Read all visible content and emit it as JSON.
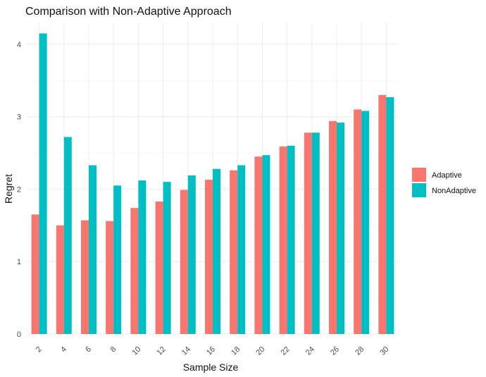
{
  "chart_data": {
    "type": "bar",
    "title": "Comparison with Non-Adaptive Approach",
    "xlabel": "Sample Size",
    "ylabel": "Regret",
    "categories": [
      "2",
      "4",
      "6",
      "8",
      "10",
      "12",
      "14",
      "16",
      "18",
      "20",
      "22",
      "24",
      "26",
      "28",
      "30"
    ],
    "series": [
      {
        "name": "Adaptive",
        "color": "#F8766D",
        "values": [
          1.65,
          1.5,
          1.57,
          1.56,
          1.74,
          1.83,
          1.99,
          2.13,
          2.26,
          2.45,
          2.59,
          2.78,
          2.94,
          3.1,
          3.3
        ]
      },
      {
        "name": "NonAdaptive",
        "color": "#00BFC4",
        "values": [
          4.15,
          2.72,
          2.33,
          2.05,
          2.12,
          2.1,
          2.19,
          2.28,
          2.33,
          2.47,
          2.6,
          2.78,
          2.92,
          3.08,
          3.27
        ]
      }
    ],
    "y_ticks": [
      0,
      1,
      2,
      3,
      4
    ],
    "ylim": [
      0,
      4.3
    ],
    "grid": true,
    "legend_position": "right",
    "x_tick_rotation": 45
  }
}
